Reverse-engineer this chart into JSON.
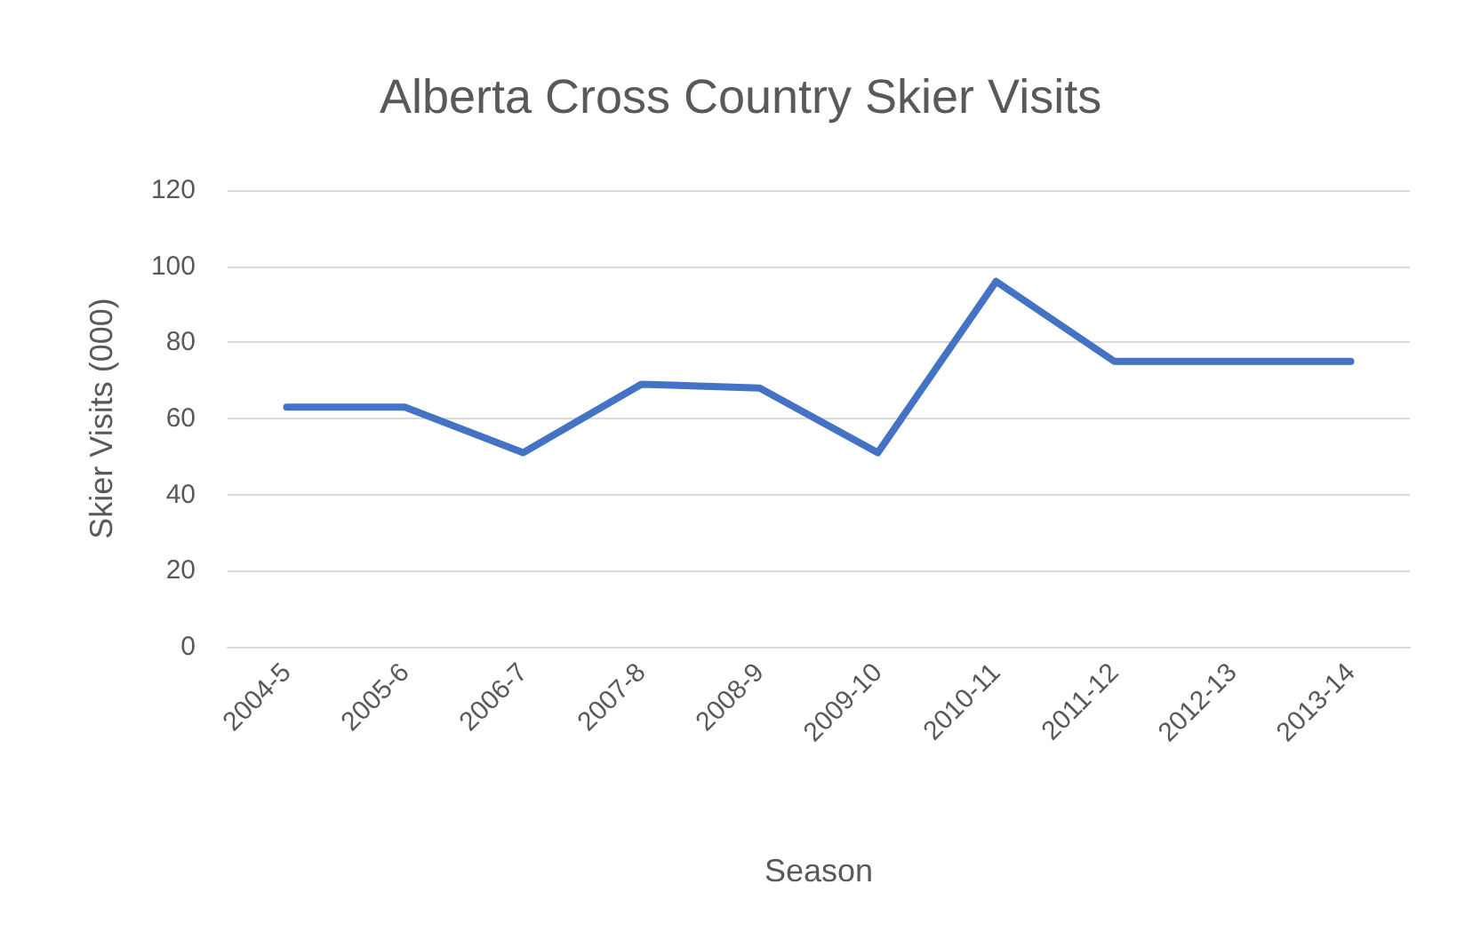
{
  "chart_data": {
    "type": "line",
    "title": "Alberta Cross Country Skier Visits",
    "xlabel": "Season",
    "ylabel": "Skier Visits (000)",
    "categories": [
      "2004-5",
      "2005-6",
      "2006-7",
      "2007-8",
      "2008-9",
      "2009-10",
      "2010-11",
      "2011-12",
      "2012-13",
      "2013-14"
    ],
    "series": [
      {
        "color": "#4472c4",
        "values": [
          63,
          63,
          51,
          69,
          68,
          51,
          96,
          75,
          75,
          75
        ]
      }
    ],
    "ylim": [
      0,
      120
    ],
    "yticks": [
      0,
      20,
      40,
      60,
      80,
      100,
      120
    ],
    "grid": "y",
    "marker": "none",
    "line_style": "solid"
  }
}
